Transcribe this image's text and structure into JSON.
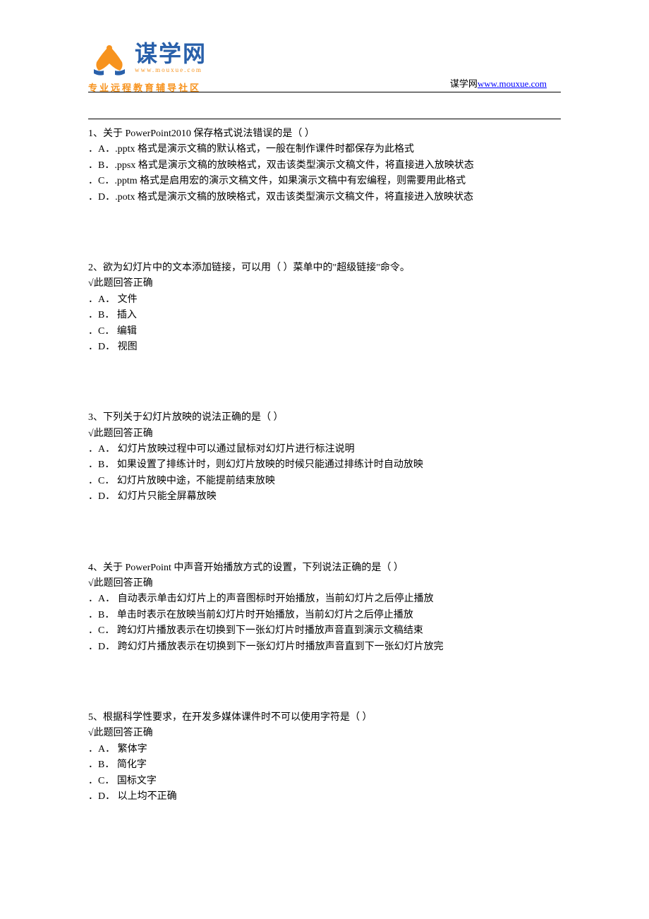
{
  "header": {
    "logo_main": "谋学网",
    "logo_sub": "www.mouxue.com",
    "logo_tagline": "专业远程教育辅导社区",
    "site_text": "谋学网",
    "site_url": "www.mouxue.com"
  },
  "questions": [
    {
      "number": "1、",
      "text": "关于 PowerPoint2010 保存格式说法错误的是（ ）",
      "correct": "",
      "options": [
        "．A．.pptx 格式是演示文稿的默认格式，一般在制作课件时都保存为此格式",
        "．B．.ppsx 格式是演示文稿的放映格式，双击该类型演示文稿文件，将直接进入放映状态",
        "．C．.pptm 格式是启用宏的演示文稿文件，如果演示文稿中有宏编程，则需要用此格式",
        "．D．.potx 格式是演示文稿的放映格式，双击该类型演示文稿文件，将直接进入放映状态"
      ]
    },
    {
      "number": "2、",
      "text": "欲为幻灯片中的文本添加链接，可以用（ ）菜单中的\"超级链接\"命令。",
      "correct": "√此题回答正确",
      "options": [
        "．A． 文件",
        "．B． 插入",
        "．C． 编辑",
        "．D． 视图"
      ]
    },
    {
      "number": "3、",
      "text": "下列关于幻灯片放映的说法正确的是（ ）",
      "correct": "√此题回答正确",
      "options": [
        "．A． 幻灯片放映过程中可以通过鼠标对幻灯片进行标注说明",
        "．B． 如果设置了排练计时，则幻灯片放映的时候只能通过排练计时自动放映",
        "．C． 幻灯片放映中途，不能提前结束放映",
        "．D． 幻灯片只能全屏幕放映"
      ]
    },
    {
      "number": "4、",
      "text": "关于 PowerPoint 中声音开始播放方式的设置，下列说法正确的是（ ）",
      "correct": "√此题回答正确",
      "options": [
        "．A． 自动表示单击幻灯片上的声音图标时开始播放，当前幻灯片之后停止播放",
        "．B． 单击时表示在放映当前幻灯片时开始播放，当前幻灯片之后停止播放",
        "．C． 跨幻灯片播放表示在切换到下一张幻灯片时播放声音直到演示文稿结束",
        "．D． 跨幻灯片播放表示在切换到下一张幻灯片时播放声音直到下一张幻灯片放完"
      ]
    },
    {
      "number": "5、",
      "text": "根据科学性要求，在开发多媒体课件时不可以使用字符是（ ）",
      "correct": "√此题回答正确",
      "options": [
        "．A． 繁体字",
        "．B． 简化字",
        "．C． 国标文字",
        "．D． 以上均不正确"
      ]
    }
  ]
}
